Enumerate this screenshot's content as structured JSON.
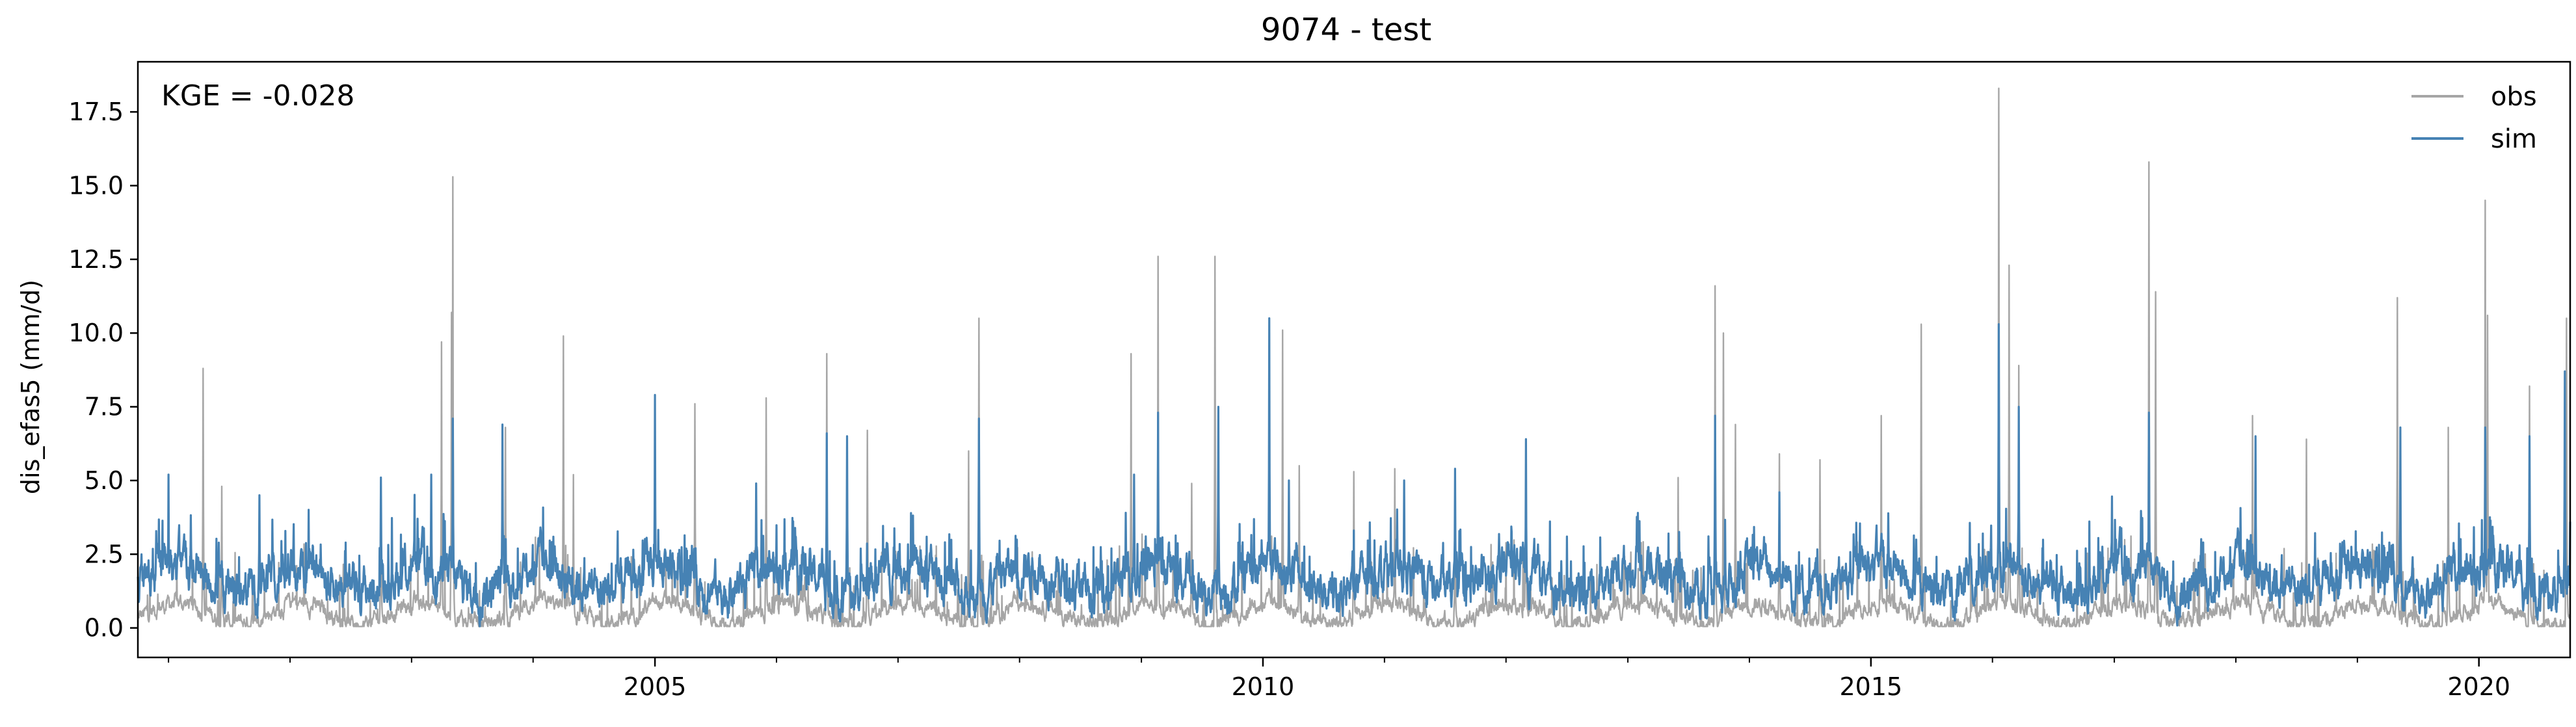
{
  "chart_data": {
    "type": "line",
    "title": "9074 - test",
    "ylabel": "dis_efas5 (mm/d)",
    "xlabel": "",
    "annotation": "KGE = -0.028",
    "xlim": [
      "2000-10-01",
      "2020-10-01"
    ],
    "ylim": [
      -1.0,
      19.2
    ],
    "yticks": [
      0.0,
      2.5,
      5.0,
      7.5,
      10.0,
      12.5,
      15.0,
      17.5
    ],
    "ytick_labels": [
      "0.0",
      "2.5",
      "5.0",
      "7.5",
      "10.0",
      "12.5",
      "15.0",
      "17.5"
    ],
    "xticks": [
      "2005-01-01",
      "2010-01-01",
      "2015-01-01",
      "2020-01-01"
    ],
    "xtick_labels": [
      "2005",
      "2010",
      "2015",
      "2020"
    ],
    "legend": {
      "placement": "top-right"
    },
    "grid": false,
    "series": [
      {
        "name": "obs",
        "color": "#a6a6a6",
        "baseline": 0.5,
        "peaks": [
          [
            "2001-04-15",
            8.8
          ],
          [
            "2001-06-10",
            4.8
          ],
          [
            "2002-10-01",
            5.1
          ],
          [
            "2003-04-01",
            9.7
          ],
          [
            "2003-05-01",
            10.7
          ],
          [
            "2003-05-05",
            15.3
          ],
          [
            "2003-10-10",
            6.8
          ],
          [
            "2004-04-01",
            9.9
          ],
          [
            "2004-05-01",
            5.2
          ],
          [
            "2005-05-01",
            7.6
          ],
          [
            "2005-12-01",
            7.8
          ],
          [
            "2006-06-01",
            9.3
          ],
          [
            "2006-10-01",
            6.7
          ],
          [
            "2007-08-01",
            6.0
          ],
          [
            "2007-09-01",
            10.5
          ],
          [
            "2008-12-01",
            9.3
          ],
          [
            "2009-02-20",
            12.6
          ],
          [
            "2009-06-01",
            4.9
          ],
          [
            "2009-08-10",
            12.6
          ],
          [
            "2010-03-01",
            10.1
          ],
          [
            "2010-04-20",
            5.5
          ],
          [
            "2010-10-01",
            5.3
          ],
          [
            "2011-02-01",
            5.4
          ],
          [
            "2011-08-01",
            3.8
          ],
          [
            "2012-03-01",
            6.3
          ],
          [
            "2013-06-01",
            5.1
          ],
          [
            "2013-09-20",
            11.6
          ],
          [
            "2013-10-15",
            10.0
          ],
          [
            "2013-11-20",
            6.9
          ],
          [
            "2014-04-01",
            5.9
          ],
          [
            "2014-08-01",
            5.7
          ],
          [
            "2015-02-01",
            7.2
          ],
          [
            "2015-06-01",
            10.3
          ],
          [
            "2016-01-20",
            18.3
          ],
          [
            "2016-02-20",
            12.3
          ],
          [
            "2016-03-20",
            8.9
          ],
          [
            "2017-04-15",
            15.8
          ],
          [
            "2017-05-05",
            11.4
          ],
          [
            "2018-02-20",
            7.2
          ],
          [
            "2018-08-01",
            6.4
          ],
          [
            "2019-05-01",
            11.2
          ],
          [
            "2019-10-01",
            6.8
          ],
          [
            "2020-01-20",
            14.5
          ],
          [
            "2020-01-27",
            10.6
          ],
          [
            "2020-09-20",
            10.5
          ],
          [
            "2020-06-01",
            8.2
          ]
        ]
      },
      {
        "name": "sim",
        "color": "#4682b4",
        "baseline": 1.7,
        "peaks": [
          [
            "2001-01-01",
            5.2
          ],
          [
            "2001-10-01",
            4.5
          ],
          [
            "2002-10-01",
            5.1
          ],
          [
            "2003-03-01",
            5.2
          ],
          [
            "2003-05-05",
            7.1
          ],
          [
            "2003-10-01",
            6.9
          ],
          [
            "2005-01-01",
            7.9
          ],
          [
            "2005-11-01",
            4.9
          ],
          [
            "2006-06-01",
            6.6
          ],
          [
            "2006-08-01",
            6.5
          ],
          [
            "2007-09-01",
            7.1
          ],
          [
            "2008-12-10",
            5.2
          ],
          [
            "2009-02-20",
            7.3
          ],
          [
            "2009-08-20",
            7.5
          ],
          [
            "2010-01-20",
            10.5
          ],
          [
            "2010-03-20",
            5.0
          ],
          [
            "2011-03-01",
            5.0
          ],
          [
            "2011-08-01",
            5.4
          ],
          [
            "2012-03-01",
            6.4
          ],
          [
            "2013-09-20",
            7.2
          ],
          [
            "2014-04-01",
            4.6
          ],
          [
            "2016-01-20",
            10.3
          ],
          [
            "2016-03-20",
            7.5
          ],
          [
            "2017-04-15",
            7.3
          ],
          [
            "2018-03-01",
            6.5
          ],
          [
            "2019-05-10",
            6.8
          ],
          [
            "2020-01-20",
            6.8
          ],
          [
            "2020-06-01",
            6.5
          ],
          [
            "2020-09-15",
            8.7
          ],
          [
            "2020-10-01",
            3.6
          ]
        ]
      }
    ]
  }
}
